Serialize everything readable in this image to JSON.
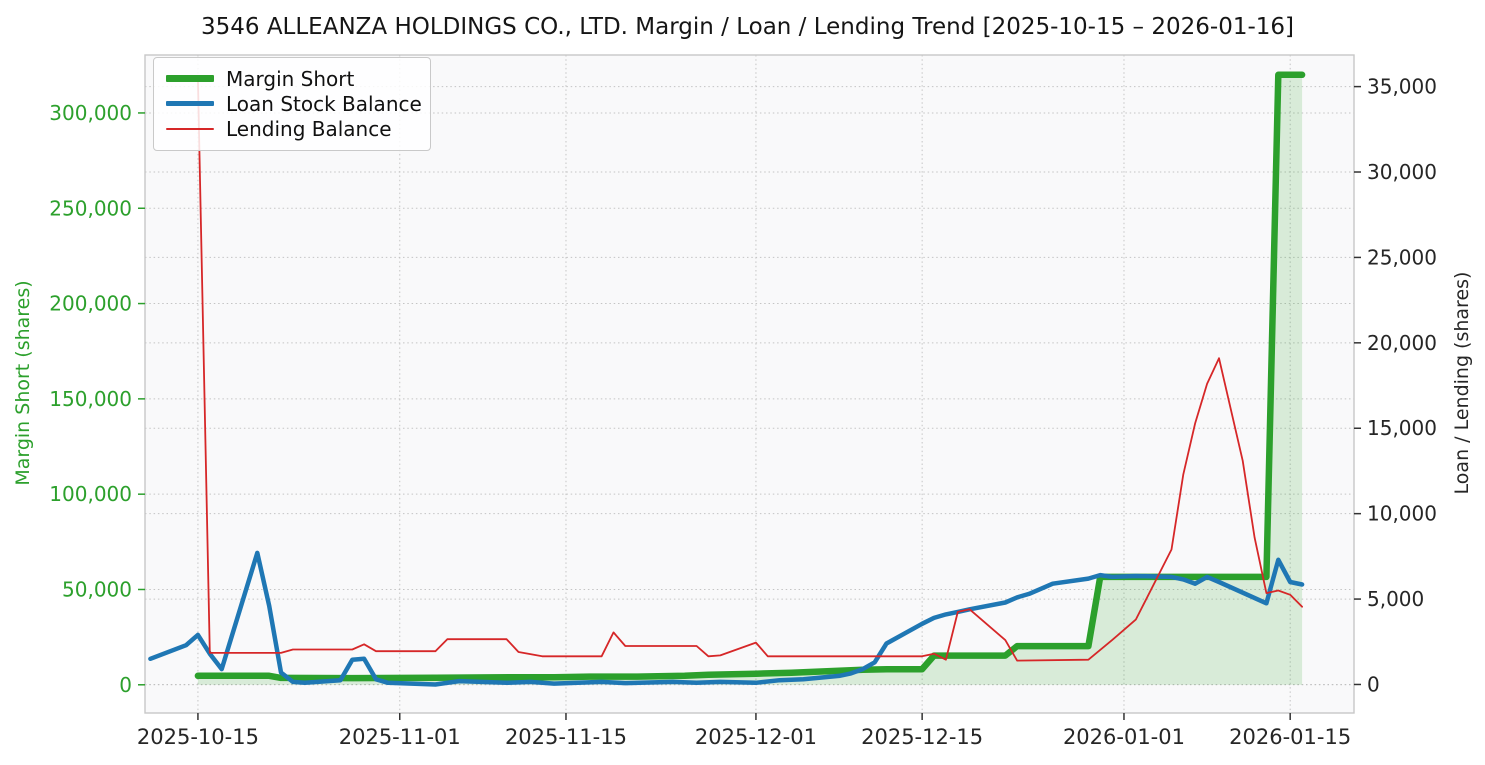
{
  "chart_data": {
    "type": "line",
    "title": "3546 ALLEANZA HOLDINGS CO., LTD. Margin / Loan / Lending Trend [2025-10-15 – 2026-01-16]",
    "grid": "dotted",
    "legend_position": "upper-left",
    "x_axis": {
      "min_date": "2025-10-10T13:00:00",
      "max_date": "2026-01-20T09:00:00",
      "tick_dates": [
        "2025-10-15",
        "2025-11-01",
        "2025-11-15",
        "2025-12-01",
        "2025-12-15",
        "2026-01-01",
        "2026-01-15"
      ],
      "tick_labels": [
        "2025-10-15",
        "2025-11-01",
        "2025-11-15",
        "2025-12-01",
        "2025-12-15",
        "2026-01-01",
        "2026-01-15"
      ]
    },
    "left_axis": {
      "label": "Margin Short (shares)",
      "color": "#2ca02c",
      "min": -14800,
      "max": 330400,
      "ticks": [
        0,
        50000,
        100000,
        150000,
        200000,
        250000,
        300000
      ],
      "tick_labels": [
        "0",
        "50,000",
        "100,000",
        "150,000",
        "200,000",
        "250,000",
        "300,000"
      ]
    },
    "right_axis": {
      "label": "Loan / Lending (shares)",
      "color": "#262626",
      "min": -1670,
      "max": 36850,
      "ticks": [
        0,
        5000,
        10000,
        15000,
        20000,
        25000,
        30000,
        35000
      ],
      "tick_labels": [
        "0",
        "5,000",
        "10,000",
        "15,000",
        "20,000",
        "25,000",
        "30,000",
        "35,000"
      ]
    },
    "series": [
      {
        "name": "Margin Short",
        "key": "margin-short",
        "color": "#2ca02c",
        "width": 6.5,
        "axis": "left",
        "fill": true,
        "fill_opacity": 0.16,
        "points": [
          [
            "2025-10-15",
            4700
          ],
          [
            "2025-10-21",
            4700
          ],
          [
            "2025-10-22",
            3600
          ],
          [
            "2025-10-28",
            3500
          ],
          [
            "2025-11-04",
            3700
          ],
          [
            "2025-11-11",
            4000
          ],
          [
            "2025-11-14",
            4000
          ],
          [
            "2025-11-17",
            4300
          ],
          [
            "2025-11-21",
            4300
          ],
          [
            "2025-11-25",
            4700
          ],
          [
            "2025-11-27",
            5300
          ],
          [
            "2025-12-01",
            5800
          ],
          [
            "2025-12-04",
            6300
          ],
          [
            "2025-12-08",
            7400
          ],
          [
            "2025-12-10",
            7900
          ],
          [
            "2025-12-12",
            8200
          ],
          [
            "2025-12-15",
            8200
          ],
          [
            "2025-12-16",
            15300
          ],
          [
            "2025-12-22",
            15300
          ],
          [
            "2025-12-23",
            20300
          ],
          [
            "2025-12-29",
            20300
          ],
          [
            "2025-12-30",
            56600
          ],
          [
            "2026-01-13",
            56600
          ],
          [
            "2026-01-14",
            320000
          ],
          [
            "2026-01-16",
            320000
          ]
        ]
      },
      {
        "name": "Loan Stock Balance",
        "key": "loan-stock-balance",
        "color": "#1f77b4",
        "width": 4.5,
        "axis": "right",
        "fill": false,
        "points": [
          [
            "2025-10-11",
            1500
          ],
          [
            "2025-10-14",
            2300
          ],
          [
            "2025-10-15",
            2900
          ],
          [
            "2025-10-16",
            1800
          ],
          [
            "2025-10-17",
            900
          ],
          [
            "2025-10-20",
            7700
          ],
          [
            "2025-10-21",
            4600
          ],
          [
            "2025-10-22",
            700
          ],
          [
            "2025-10-23",
            150
          ],
          [
            "2025-10-24",
            100
          ],
          [
            "2025-10-27",
            250
          ],
          [
            "2025-10-28",
            1450
          ],
          [
            "2025-10-29",
            1500
          ],
          [
            "2025-10-30",
            300
          ],
          [
            "2025-10-31",
            100
          ],
          [
            "2025-11-04",
            0
          ],
          [
            "2025-11-06",
            200
          ],
          [
            "2025-11-10",
            100
          ],
          [
            "2025-11-12",
            150
          ],
          [
            "2025-11-14",
            50
          ],
          [
            "2025-11-18",
            150
          ],
          [
            "2025-11-20",
            80
          ],
          [
            "2025-11-24",
            150
          ],
          [
            "2025-11-26",
            100
          ],
          [
            "2025-11-28",
            150
          ],
          [
            "2025-12-01",
            100
          ],
          [
            "2025-12-03",
            250
          ],
          [
            "2025-12-05",
            300
          ],
          [
            "2025-12-08",
            500
          ],
          [
            "2025-12-09",
            650
          ],
          [
            "2025-12-10",
            900
          ],
          [
            "2025-12-11",
            1300
          ],
          [
            "2025-12-12",
            2400
          ],
          [
            "2025-12-15",
            3550
          ],
          [
            "2025-12-16",
            3900
          ],
          [
            "2025-12-17",
            4100
          ],
          [
            "2025-12-18",
            4250
          ],
          [
            "2025-12-19",
            4400
          ],
          [
            "2025-12-22",
            4800
          ],
          [
            "2025-12-23",
            5100
          ],
          [
            "2025-12-24",
            5300
          ],
          [
            "2025-12-25",
            5600
          ],
          [
            "2025-12-26",
            5900
          ],
          [
            "2025-12-29",
            6200
          ],
          [
            "2025-12-30",
            6400
          ],
          [
            "2025-12-31",
            6300
          ],
          [
            "2026-01-02",
            6350
          ],
          [
            "2026-01-05",
            6300
          ],
          [
            "2026-01-06",
            6150
          ],
          [
            "2026-01-07",
            5900
          ],
          [
            "2026-01-08",
            6300
          ],
          [
            "2026-01-09",
            6000
          ],
          [
            "2026-01-13",
            4750
          ],
          [
            "2026-01-14",
            7300
          ],
          [
            "2026-01-15",
            6000
          ],
          [
            "2026-01-16",
            5850
          ]
        ]
      },
      {
        "name": "Lending Balance",
        "key": "lending-balance",
        "color": "#d62728",
        "width": 1.8,
        "axis": "right",
        "fill": false,
        "points": [
          [
            "2025-10-15",
            35500
          ],
          [
            "2025-10-16",
            1850
          ],
          [
            "2025-10-22",
            1850
          ],
          [
            "2025-10-23",
            2050
          ],
          [
            "2025-10-28",
            2050
          ],
          [
            "2025-10-29",
            2350
          ],
          [
            "2025-10-30",
            1950
          ],
          [
            "2025-11-04",
            1950
          ],
          [
            "2025-11-05",
            2650
          ],
          [
            "2025-11-10",
            2650
          ],
          [
            "2025-11-11",
            1900
          ],
          [
            "2025-11-13",
            1650
          ],
          [
            "2025-11-18",
            1650
          ],
          [
            "2025-11-19",
            3050
          ],
          [
            "2025-11-20",
            2250
          ],
          [
            "2025-11-26",
            2250
          ],
          [
            "2025-11-27",
            1650
          ],
          [
            "2025-11-28",
            1700
          ],
          [
            "2025-12-01",
            2450
          ],
          [
            "2025-12-02",
            1650
          ],
          [
            "2025-12-15",
            1650
          ],
          [
            "2025-12-16",
            1800
          ],
          [
            "2025-12-17",
            1450
          ],
          [
            "2025-12-18",
            4250
          ],
          [
            "2025-12-19",
            4400
          ],
          [
            "2025-12-22",
            2600
          ],
          [
            "2025-12-23",
            1400
          ],
          [
            "2025-12-29",
            1450
          ],
          [
            "2025-12-31",
            2600
          ],
          [
            "2026-01-02",
            3800
          ],
          [
            "2026-01-05",
            7900
          ],
          [
            "2026-01-06",
            12300
          ],
          [
            "2026-01-07",
            15300
          ],
          [
            "2026-01-08",
            17600
          ],
          [
            "2026-01-09",
            19100
          ],
          [
            "2026-01-11",
            13100
          ],
          [
            "2026-01-12",
            8600
          ],
          [
            "2026-01-13",
            5350
          ],
          [
            "2026-01-14",
            5500
          ],
          [
            "2026-01-15",
            5250
          ],
          [
            "2026-01-16",
            4550
          ]
        ]
      }
    ]
  }
}
